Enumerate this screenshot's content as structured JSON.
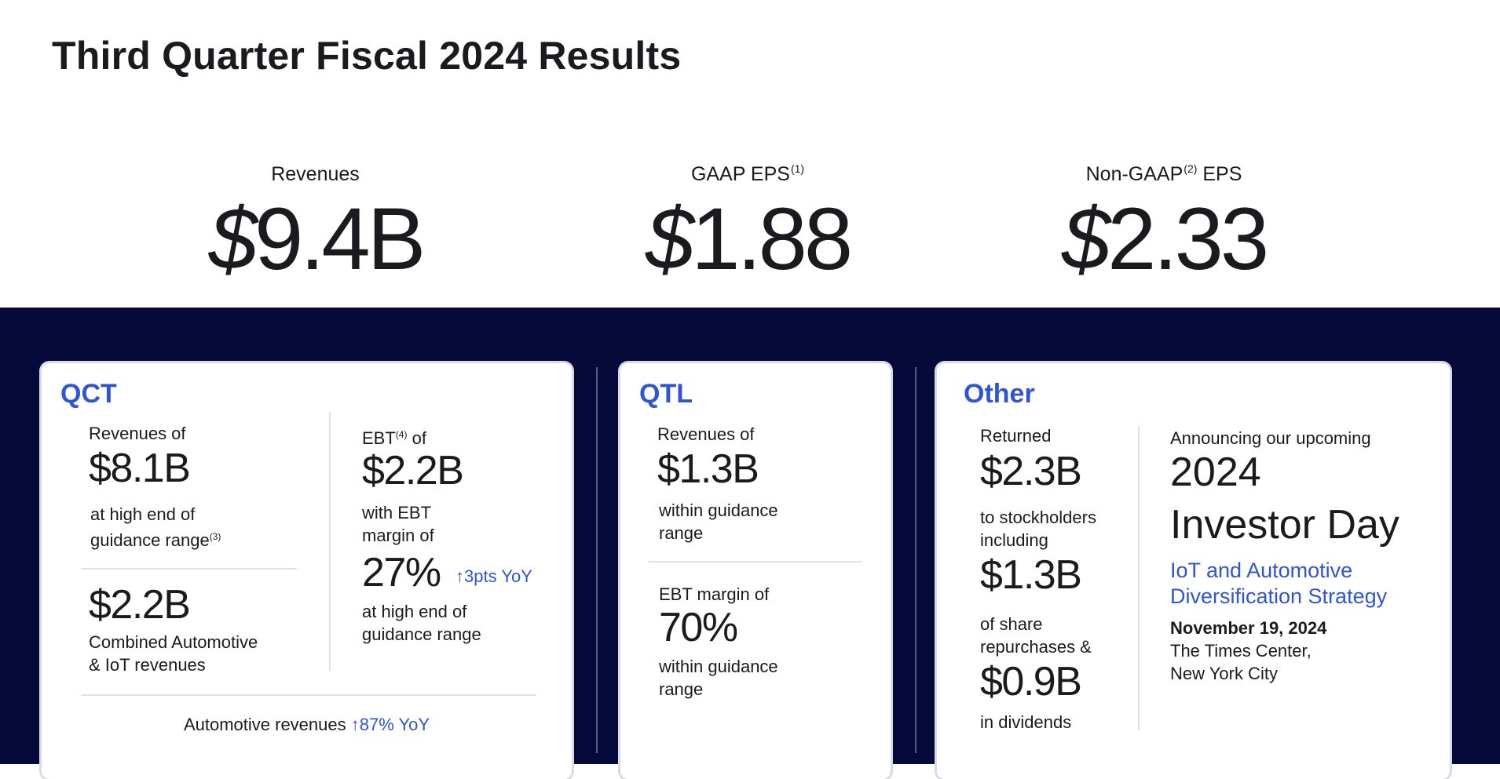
{
  "title": "Third Quarter Fiscal 2024 Results",
  "metrics": [
    {
      "label": "Revenues",
      "sup": "",
      "label_after": "",
      "currency": "$",
      "value": "9.4B"
    },
    {
      "label": "GAAP EPS",
      "sup": "(1)",
      "label_after": "",
      "currency": "$",
      "value": "1.88"
    },
    {
      "label": "Non-GAAP",
      "sup": "(2)",
      "label_after": " EPS",
      "currency": "$",
      "value": "2.33"
    }
  ],
  "qct": {
    "title": "QCT",
    "revenues_label": "Revenues of",
    "revenues_value": "$8.1B",
    "revenues_note_1": "at high end of",
    "revenues_note_2": "guidance range",
    "revenues_note_sup": "(3)",
    "iot_value": "$2.2B",
    "iot_label_1": "Combined Automotive",
    "iot_label_2": "& IoT revenues",
    "ebt_label": "EBT",
    "ebt_sup": "(4)",
    "ebt_label_after": " of",
    "ebt_value": "$2.2B",
    "ebt_note_1": "with EBT",
    "ebt_note_2": "margin of",
    "margin_value": "27%",
    "margin_change": "↑3pts YoY",
    "margin_note_1": "at high end of",
    "margin_note_2": "guidance range",
    "footer_label": "Automotive revenues ",
    "footer_change": "↑87% YoY"
  },
  "qtl": {
    "title": "QTL",
    "revenues_label": "Revenues of",
    "revenues_value": "$1.3B",
    "revenues_note_1": "within guidance",
    "revenues_note_2": "range",
    "ebt_label": "EBT margin of",
    "ebt_value": "70%",
    "ebt_note_1": "within guidance",
    "ebt_note_2": "range"
  },
  "other": {
    "title": "Other",
    "returned_label": "Returned",
    "returned_value": "$2.3B",
    "returned_note_1": "to stockholders",
    "returned_note_2": "including",
    "repurchase_value": "$1.3B",
    "repurchase_note_1": "of share",
    "repurchase_note_2": "repurchases &",
    "dividend_value": "$0.9B",
    "dividend_note": "in dividends",
    "announce_label": "Announcing our upcoming",
    "event_year": "2024",
    "event_name": "Investor Day",
    "event_topic_1": "IoT and Automotive",
    "event_topic_2": "Diversification Strategy",
    "event_date": "November 19, 2024",
    "event_venue_1": "The Times Center,",
    "event_venue_2": "New York City"
  },
  "colors": {
    "band": "#050a3a",
    "accent": "#2f55d4",
    "text": "#1a1a1f"
  }
}
